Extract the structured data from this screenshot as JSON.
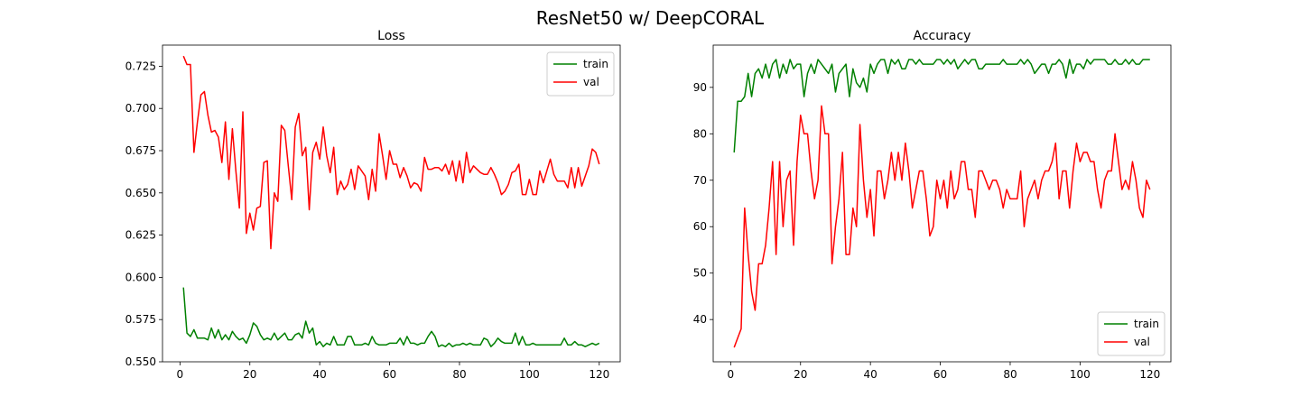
{
  "figure": {
    "title": "ResNet50 w/ DeepCORAL"
  },
  "colors": {
    "train": "#008000",
    "val": "#ff0000"
  },
  "chart_data": [
    {
      "type": "line",
      "title": "Loss",
      "xlabel": "",
      "ylabel": "",
      "xlim": [
        -5,
        126
      ],
      "ylim": [
        0.55,
        0.7375
      ],
      "xticks": [
        0,
        20,
        40,
        60,
        80,
        100,
        120
      ],
      "yticks": [
        0.55,
        0.575,
        0.6,
        0.625,
        0.65,
        0.675,
        0.7,
        0.725
      ],
      "ytick_labels": [
        "0.550",
        "0.575",
        "0.600",
        "0.625",
        "0.650",
        "0.675",
        "0.700",
        "0.725"
      ],
      "legend": {
        "placement": "upper-right",
        "entries": [
          "train",
          "val"
        ]
      },
      "grid": false,
      "series": [
        {
          "name": "train",
          "x": [
            1,
            2,
            3,
            4,
            5,
            6,
            7,
            8,
            9,
            10,
            11,
            12,
            13,
            14,
            15,
            16,
            17,
            18,
            19,
            20,
            21,
            22,
            23,
            24,
            25,
            26,
            27,
            28,
            29,
            30,
            31,
            32,
            33,
            34,
            35,
            36,
            37,
            38,
            39,
            40,
            41,
            42,
            43,
            44,
            45,
            46,
            47,
            48,
            49,
            50,
            51,
            52,
            53,
            54,
            55,
            56,
            57,
            58,
            59,
            60,
            61,
            62,
            63,
            64,
            65,
            66,
            67,
            68,
            69,
            70,
            71,
            72,
            73,
            74,
            75,
            76,
            77,
            78,
            79,
            80,
            81,
            82,
            83,
            84,
            85,
            86,
            87,
            88,
            89,
            90,
            91,
            92,
            93,
            94,
            95,
            96,
            97,
            98,
            99,
            100,
            101,
            102,
            103,
            104,
            105,
            106,
            107,
            108,
            109,
            110,
            111,
            112,
            113,
            114,
            115,
            116,
            117,
            118,
            119,
            120
          ],
          "values": [
            0.594,
            0.567,
            0.565,
            0.569,
            0.564,
            0.564,
            0.564,
            0.563,
            0.57,
            0.564,
            0.569,
            0.563,
            0.566,
            0.563,
            0.568,
            0.565,
            0.563,
            0.564,
            0.561,
            0.566,
            0.573,
            0.571,
            0.566,
            0.563,
            0.564,
            0.563,
            0.567,
            0.563,
            0.565,
            0.567,
            0.563,
            0.563,
            0.566,
            0.567,
            0.564,
            0.574,
            0.567,
            0.57,
            0.56,
            0.562,
            0.559,
            0.561,
            0.56,
            0.565,
            0.56,
            0.56,
            0.56,
            0.565,
            0.565,
            0.56,
            0.56,
            0.56,
            0.561,
            0.56,
            0.565,
            0.561,
            0.56,
            0.56,
            0.56,
            0.561,
            0.561,
            0.561,
            0.564,
            0.56,
            0.565,
            0.561,
            0.561,
            0.56,
            0.561,
            0.561,
            0.565,
            0.568,
            0.565,
            0.559,
            0.56,
            0.559,
            0.561,
            0.559,
            0.56,
            0.56,
            0.561,
            0.56,
            0.561,
            0.56,
            0.56,
            0.56,
            0.564,
            0.563,
            0.559,
            0.561,
            0.564,
            0.562,
            0.561,
            0.561,
            0.561,
            0.567,
            0.56,
            0.565,
            0.56,
            0.56,
            0.561,
            0.56,
            0.56,
            0.56,
            0.56,
            0.56,
            0.56,
            0.56,
            0.56,
            0.564,
            0.56,
            0.56,
            0.562,
            0.56,
            0.56,
            0.559,
            0.56,
            0.561,
            0.56,
            0.561
          ]
        },
        {
          "name": "val",
          "x": [
            1,
            2,
            3,
            4,
            5,
            6,
            7,
            8,
            9,
            10,
            11,
            12,
            13,
            14,
            15,
            16,
            17,
            18,
            19,
            20,
            21,
            22,
            23,
            24,
            25,
            26,
            27,
            28,
            29,
            30,
            31,
            32,
            33,
            34,
            35,
            36,
            37,
            38,
            39,
            40,
            41,
            42,
            43,
            44,
            45,
            46,
            47,
            48,
            49,
            50,
            51,
            52,
            53,
            54,
            55,
            56,
            57,
            58,
            59,
            60,
            61,
            62,
            63,
            64,
            65,
            66,
            67,
            68,
            69,
            70,
            71,
            72,
            73,
            74,
            75,
            76,
            77,
            78,
            79,
            80,
            81,
            82,
            83,
            84,
            85,
            86,
            87,
            88,
            89,
            90,
            91,
            92,
            93,
            94,
            95,
            96,
            97,
            98,
            99,
            100,
            101,
            102,
            103,
            104,
            105,
            106,
            107,
            108,
            109,
            110,
            111,
            112,
            113,
            114,
            115,
            116,
            117,
            118,
            119,
            120
          ],
          "values": [
            0.731,
            0.726,
            0.726,
            0.674,
            0.692,
            0.708,
            0.71,
            0.696,
            0.686,
            0.687,
            0.683,
            0.668,
            0.692,
            0.658,
            0.688,
            0.663,
            0.641,
            0.698,
            0.626,
            0.638,
            0.628,
            0.641,
            0.642,
            0.668,
            0.669,
            0.617,
            0.65,
            0.645,
            0.69,
            0.687,
            0.666,
            0.646,
            0.689,
            0.697,
            0.672,
            0.677,
            0.64,
            0.674,
            0.68,
            0.67,
            0.689,
            0.672,
            0.662,
            0.677,
            0.649,
            0.657,
            0.652,
            0.655,
            0.664,
            0.652,
            0.666,
            0.663,
            0.66,
            0.646,
            0.664,
            0.651,
            0.685,
            0.672,
            0.658,
            0.675,
            0.667,
            0.667,
            0.659,
            0.665,
            0.66,
            0.653,
            0.656,
            0.655,
            0.651,
            0.671,
            0.664,
            0.664,
            0.665,
            0.665,
            0.663,
            0.667,
            0.661,
            0.669,
            0.657,
            0.669,
            0.656,
            0.674,
            0.662,
            0.666,
            0.664,
            0.662,
            0.661,
            0.661,
            0.665,
            0.661,
            0.656,
            0.649,
            0.651,
            0.655,
            0.662,
            0.663,
            0.667,
            0.649,
            0.649,
            0.658,
            0.649,
            0.649,
            0.663,
            0.656,
            0.663,
            0.67,
            0.661,
            0.657,
            0.657,
            0.657,
            0.653,
            0.665,
            0.653,
            0.665,
            0.654,
            0.66,
            0.666,
            0.676,
            0.674,
            0.667
          ]
        }
      ]
    },
    {
      "type": "line",
      "title": "Accuracy",
      "xlabel": "",
      "ylabel": "",
      "xlim": [
        -5,
        126
      ],
      "ylim": [
        30.9,
        99.1
      ],
      "xticks": [
        0,
        20,
        40,
        60,
        80,
        100,
        120
      ],
      "yticks": [
        40,
        50,
        60,
        70,
        80,
        90
      ],
      "ytick_labels": [
        "40",
        "50",
        "60",
        "70",
        "80",
        "90"
      ],
      "legend": {
        "placement": "lower-right",
        "entries": [
          "train",
          "val"
        ]
      },
      "grid": false,
      "series": [
        {
          "name": "train",
          "x": [
            1,
            2,
            3,
            4,
            5,
            6,
            7,
            8,
            9,
            10,
            11,
            12,
            13,
            14,
            15,
            16,
            17,
            18,
            19,
            20,
            21,
            22,
            23,
            24,
            25,
            26,
            27,
            28,
            29,
            30,
            31,
            32,
            33,
            34,
            35,
            36,
            37,
            38,
            39,
            40,
            41,
            42,
            43,
            44,
            45,
            46,
            47,
            48,
            49,
            50,
            51,
            52,
            53,
            54,
            55,
            56,
            57,
            58,
            59,
            60,
            61,
            62,
            63,
            64,
            65,
            66,
            67,
            68,
            69,
            70,
            71,
            72,
            73,
            74,
            75,
            76,
            77,
            78,
            79,
            80,
            81,
            82,
            83,
            84,
            85,
            86,
            87,
            88,
            89,
            90,
            91,
            92,
            93,
            94,
            95,
            96,
            97,
            98,
            99,
            100,
            101,
            102,
            103,
            104,
            105,
            106,
            107,
            108,
            109,
            110,
            111,
            112,
            113,
            114,
            115,
            116,
            117,
            118,
            119,
            120
          ],
          "values": [
            76,
            87,
            87,
            88,
            93,
            88,
            93,
            94,
            92,
            95,
            92,
            95,
            96,
            92,
            95,
            93,
            96,
            94,
            95,
            95,
            88,
            93,
            95,
            93,
            96,
            95,
            94,
            93,
            95,
            89,
            93,
            94,
            95,
            88,
            94,
            91,
            90,
            92,
            89,
            95,
            93,
            95,
            96,
            96,
            93,
            96,
            95,
            96,
            94,
            94,
            96,
            96,
            95,
            96,
            95,
            95,
            95,
            95,
            96,
            96,
            95,
            96,
            95,
            96,
            94,
            95,
            96,
            95,
            96,
            96,
            94,
            94,
            95,
            95,
            95,
            95,
            95,
            96,
            95,
            95,
            95,
            95,
            96,
            95,
            96,
            95,
            93,
            94,
            95,
            95,
            93,
            95,
            95,
            96,
            95,
            92,
            96,
            93,
            95,
            95,
            94,
            96,
            95,
            96,
            96,
            96,
            96,
            95,
            95,
            96,
            95,
            95,
            96,
            95,
            96,
            95,
            95,
            96,
            96,
            96
          ]
        },
        {
          "name": "val",
          "x": [
            1,
            2,
            3,
            4,
            5,
            6,
            7,
            8,
            9,
            10,
            11,
            12,
            13,
            14,
            15,
            16,
            17,
            18,
            19,
            20,
            21,
            22,
            23,
            24,
            25,
            26,
            27,
            28,
            29,
            30,
            31,
            32,
            33,
            34,
            35,
            36,
            37,
            38,
            39,
            40,
            41,
            42,
            43,
            44,
            45,
            46,
            47,
            48,
            49,
            50,
            51,
            52,
            53,
            54,
            55,
            56,
            57,
            58,
            59,
            60,
            61,
            62,
            63,
            64,
            65,
            66,
            67,
            68,
            69,
            70,
            71,
            72,
            73,
            74,
            75,
            76,
            77,
            78,
            79,
            80,
            81,
            82,
            83,
            84,
            85,
            86,
            87,
            88,
            89,
            90,
            91,
            92,
            93,
            94,
            95,
            96,
            97,
            98,
            99,
            100,
            101,
            102,
            103,
            104,
            105,
            106,
            107,
            108,
            109,
            110,
            111,
            112,
            113,
            114,
            115,
            116,
            117,
            118,
            119,
            120
          ],
          "values": [
            34,
            36,
            38,
            64,
            54,
            46,
            42,
            52,
            52,
            56,
            64,
            74,
            54,
            74,
            60,
            70,
            72,
            56,
            74,
            84,
            80,
            80,
            72,
            66,
            70,
            86,
            80,
            80,
            52,
            60,
            66,
            76,
            54,
            54,
            64,
            60,
            82,
            70,
            62,
            68,
            58,
            72,
            72,
            66,
            70,
            76,
            70,
            76,
            70,
            78,
            72,
            64,
            68,
            72,
            72,
            66,
            58,
            60,
            70,
            66,
            70,
            64,
            72,
            66,
            68,
            74,
            74,
            68,
            68,
            62,
            72,
            72,
            70,
            68,
            70,
            70,
            68,
            64,
            68,
            66,
            66,
            66,
            72,
            60,
            66,
            68,
            70,
            66,
            70,
            72,
            72,
            74,
            78,
            66,
            72,
            72,
            64,
            72,
            78,
            74,
            76,
            76,
            74,
            74,
            68,
            64,
            70,
            72,
            72,
            80,
            74,
            68,
            70,
            68,
            74,
            70,
            64,
            62,
            70,
            68
          ]
        }
      ]
    }
  ]
}
